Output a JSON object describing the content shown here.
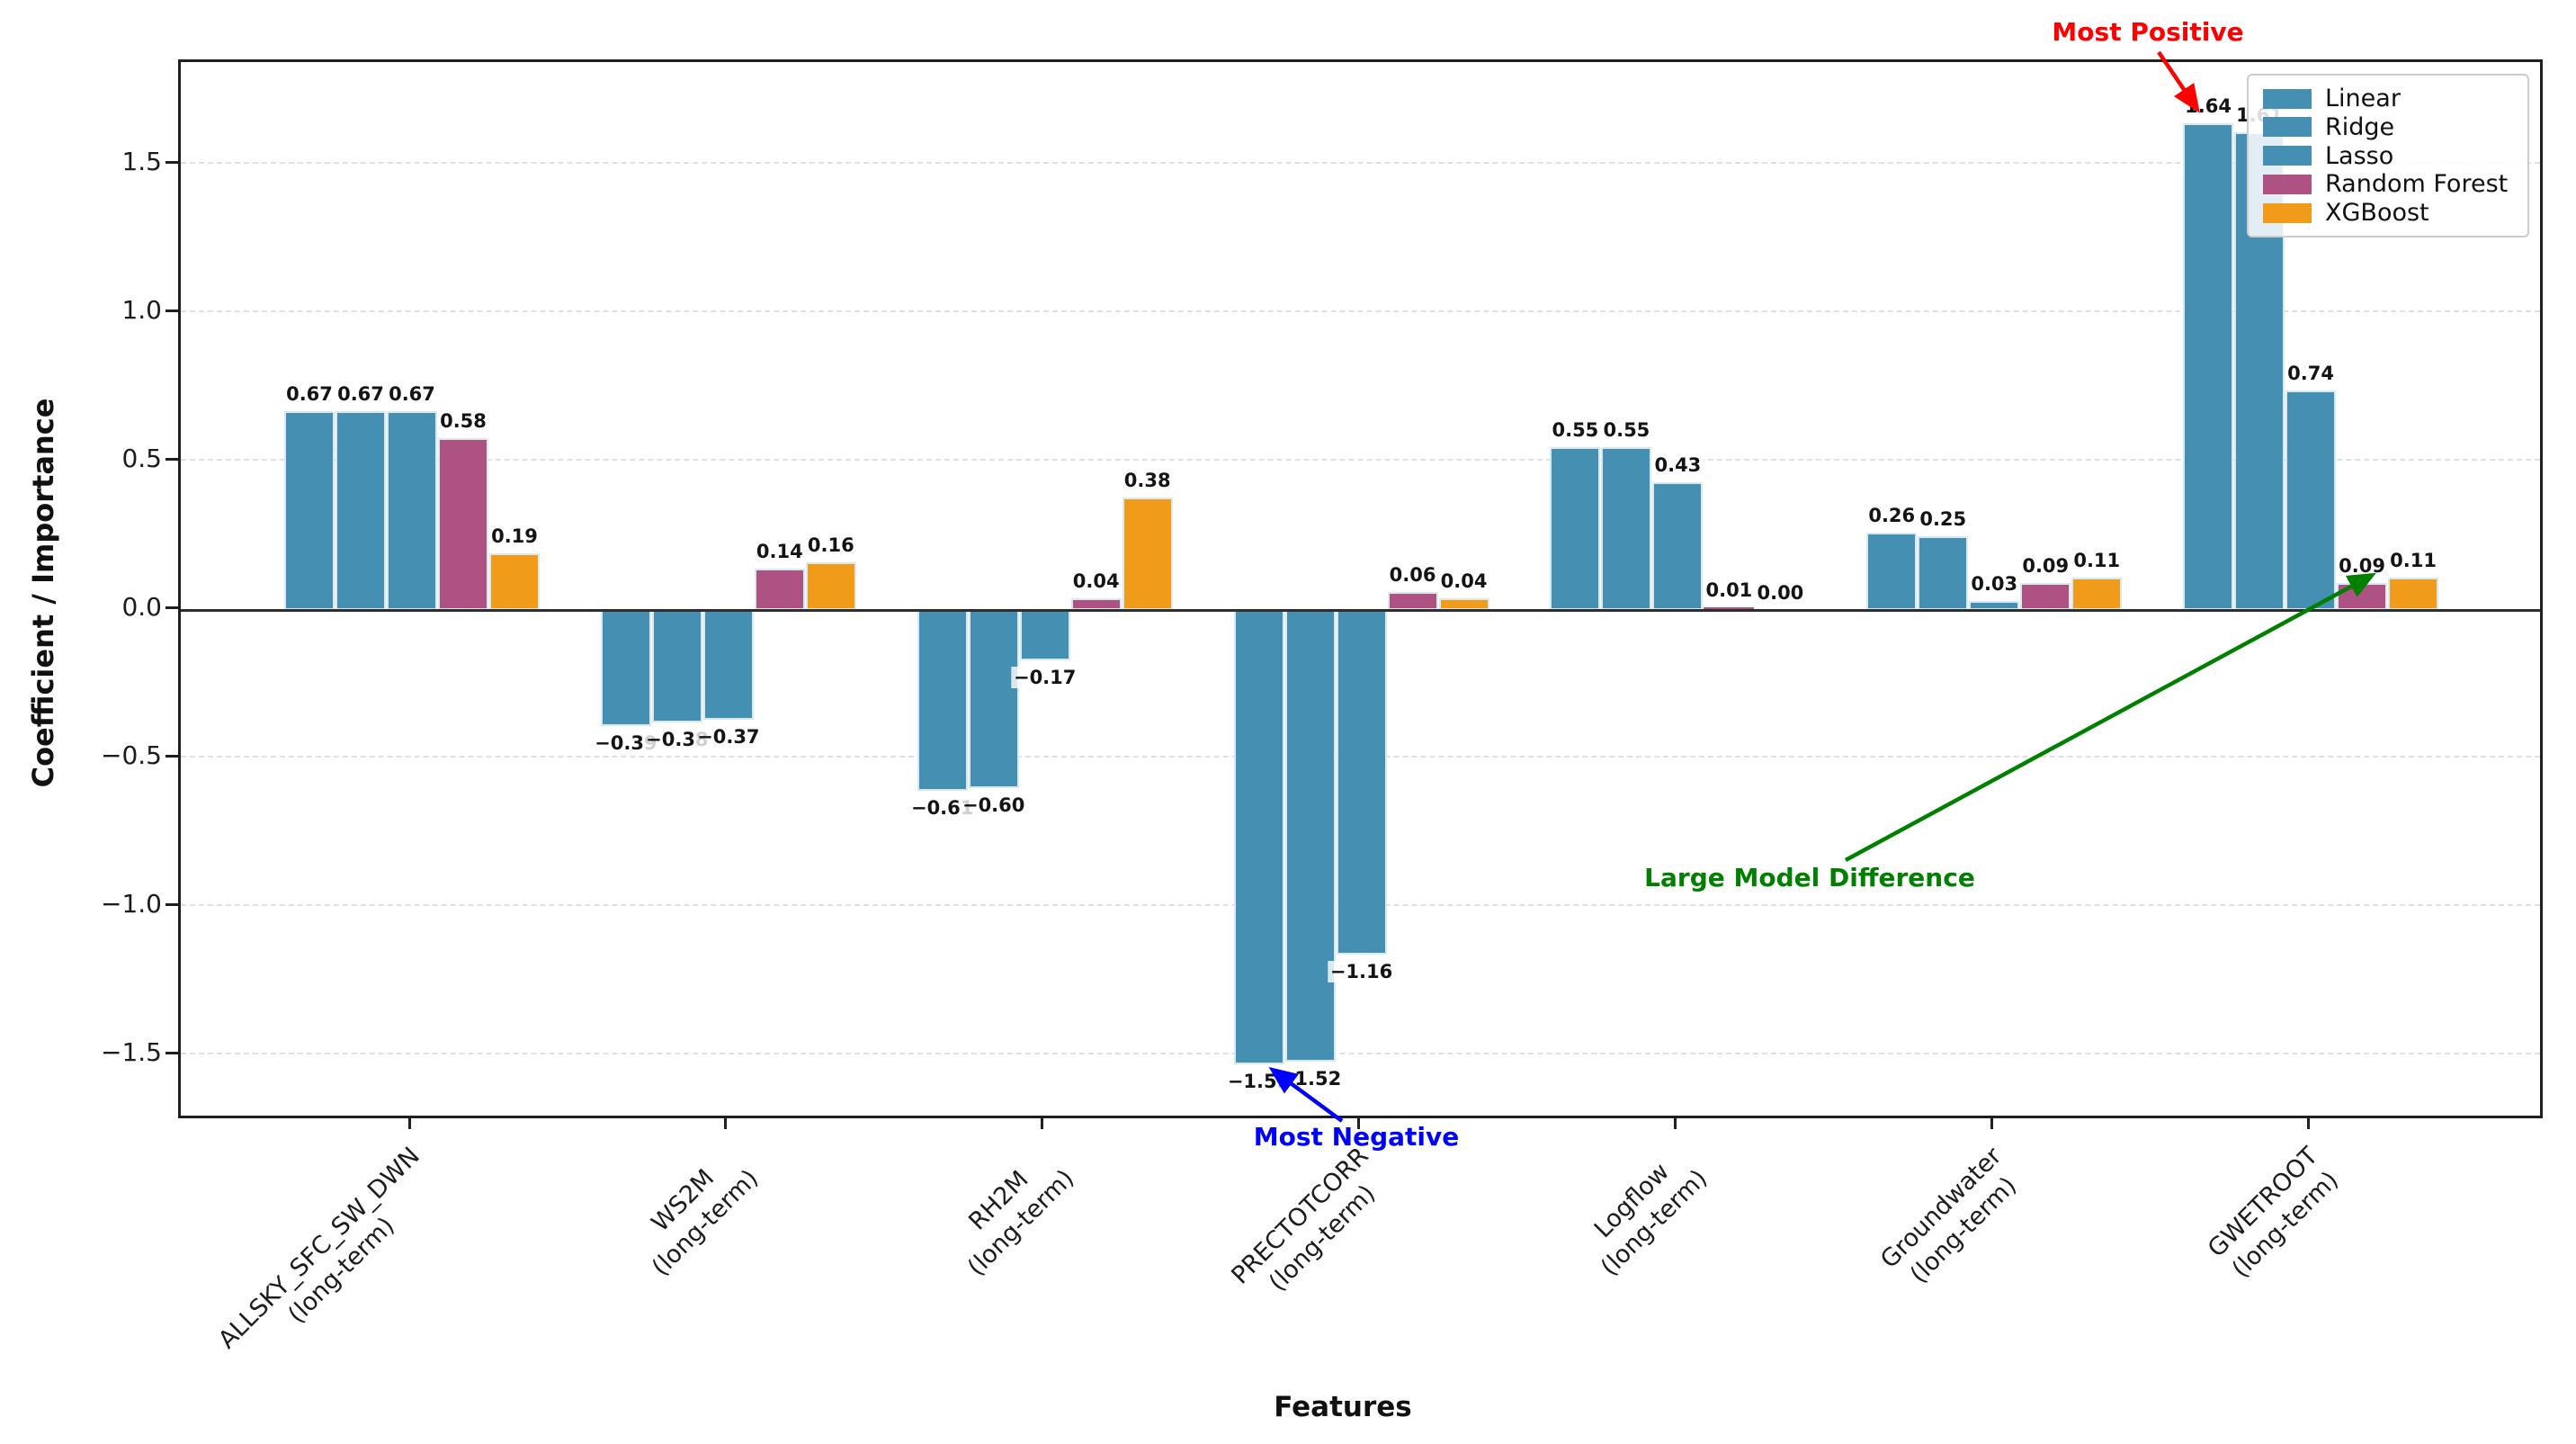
{
  "chart_data": {
    "type": "bar",
    "title": "",
    "xlabel": "Features",
    "ylabel": "Coefficient / Importance",
    "categories": [
      {
        "label": "ALLSKY_SFC_SW_DWN",
        "sub": "(long-term)"
      },
      {
        "label": "WS2M",
        "sub": "(long-term)"
      },
      {
        "label": "RH2M",
        "sub": "(long-term)"
      },
      {
        "label": "PRECTOTCORR",
        "sub": "(long-term)"
      },
      {
        "label": "Logflow",
        "sub": "(long-term)"
      },
      {
        "label": "Groundwater",
        "sub": "(long-term)"
      },
      {
        "label": "GWETROOT",
        "sub": "(long-term)"
      }
    ],
    "series": [
      {
        "name": "Linear",
        "color": "#4590B2",
        "values": [
          0.67,
          -0.39,
          -0.61,
          -1.53,
          0.55,
          0.26,
          1.64
        ]
      },
      {
        "name": "Ridge",
        "color": "#4590B2",
        "values": [
          0.67,
          -0.38,
          -0.6,
          -1.52,
          0.55,
          0.25,
          1.61
        ]
      },
      {
        "name": "Lasso",
        "color": "#4590B2",
        "values": [
          0.67,
          -0.37,
          -0.17,
          -1.16,
          0.43,
          0.03,
          0.74
        ]
      },
      {
        "name": "Random Forest",
        "color": "#AE5284",
        "values": [
          0.58,
          0.14,
          0.04,
          0.06,
          0.01,
          0.09,
          0.09
        ]
      },
      {
        "name": "XGBoost",
        "color": "#F09C1A",
        "values": [
          0.19,
          0.16,
          0.38,
          0.04,
          0.0,
          0.11,
          0.11
        ]
      }
    ],
    "yticks": [
      1.5,
      1.0,
      0.5,
      0.0,
      -0.5,
      -1.0,
      -1.5
    ],
    "ylim": [
      -1.72,
      1.85
    ],
    "grid": "dashed-horizontal",
    "legend_position": "upper-right",
    "annotations": [
      {
        "id": "most-positive",
        "text": "Most Positive",
        "color": "#FF0000"
      },
      {
        "id": "most-negative",
        "text": "Most Negative",
        "color": "#0000FF"
      },
      {
        "id": "large-model-difference",
        "text": "Large Model Difference",
        "color": "#008000"
      }
    ]
  }
}
